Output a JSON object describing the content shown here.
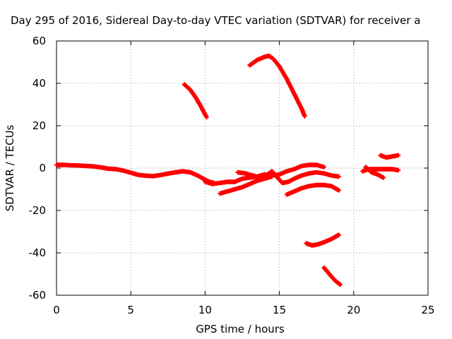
{
  "chart_data": {
    "type": "scatter",
    "title": "Day 295 of 2016, Sidereal Day-to-day VTEC variation (SDTVAR) for receiver a",
    "xlabel": "GPS time / hours",
    "ylabel": "SDTVAR / TECUs",
    "xlim": [
      0,
      25
    ],
    "ylim": [
      -60,
      60
    ],
    "x_ticks": [
      "0",
      "5",
      "10",
      "15",
      "20",
      "25"
    ],
    "y_ticks": [
      "-60",
      "-40",
      "-20",
      "0",
      "20",
      "40",
      "60"
    ],
    "grid": true,
    "legend": "none",
    "marker": "cross",
    "series_color": "#ff0000",
    "series": [
      {
        "x": [
          0.0,
          0.5,
          1.0,
          1.5,
          2.0,
          2.5,
          3.0,
          3.5,
          4.0,
          4.5,
          5.0,
          5.5,
          6.0,
          6.5,
          7.0,
          7.5,
          8.0,
          8.5,
          9.0,
          9.5,
          10.0,
          10.3,
          10.6
        ],
        "y": [
          1.5,
          1.5,
          1.3,
          1.2,
          1.0,
          0.8,
          0.3,
          -0.3,
          -0.5,
          -1.2,
          -2.2,
          -3.2,
          -3.6,
          -3.8,
          -3.3,
          -2.6,
          -2.0,
          -1.5,
          -2.0,
          -3.5,
          -5.5,
          -6.5,
          -7.0
        ]
      },
      {
        "x": [
          8.6,
          9.0,
          9.4,
          9.8,
          10.1
        ],
        "y": [
          39.5,
          37.0,
          33.0,
          28.0,
          24.0
        ]
      },
      {
        "x": [
          13.0,
          13.5,
          14.0,
          14.3,
          14.6,
          15.0,
          15.5,
          16.0,
          16.5,
          16.7
        ],
        "y": [
          48.5,
          51.0,
          52.5,
          53.0,
          51.5,
          48.0,
          42.0,
          35.0,
          28.0,
          24.5
        ]
      },
      {
        "x": [
          10.0,
          10.5,
          11.0,
          11.5,
          12.0,
          12.5,
          13.0,
          13.5,
          14.0,
          14.5,
          15.0,
          15.5,
          16.0,
          16.5,
          17.0,
          17.5,
          18.0
        ],
        "y": [
          -6.5,
          -7.5,
          -7.0,
          -6.5,
          -6.5,
          -5.0,
          -4.5,
          -4.0,
          -3.0,
          -3.5,
          -3.0,
          -1.5,
          -0.5,
          1.0,
          1.5,
          1.5,
          0.5
        ]
      },
      {
        "x": [
          11.0,
          11.5,
          12.0,
          12.5,
          13.0,
          13.5,
          14.0,
          14.5
        ],
        "y": [
          -12.0,
          -11.0,
          -10.0,
          -9.0,
          -7.5,
          -6.0,
          -5.0,
          -4.0
        ]
      },
      {
        "x": [
          12.2,
          12.7,
          13.2,
          13.7,
          14.2,
          14.5,
          14.8,
          15.2,
          15.6,
          16.0,
          16.5,
          17.0,
          17.5,
          18.0,
          18.5,
          19.0
        ],
        "y": [
          -2.0,
          -2.5,
          -3.5,
          -4.5,
          -3.0,
          -1.5,
          -4.0,
          -7.0,
          -6.5,
          -5.0,
          -3.5,
          -2.5,
          -2.0,
          -2.5,
          -3.5,
          -4.0
        ]
      },
      {
        "x": [
          15.5,
          16.0,
          16.5,
          17.0,
          17.5,
          18.0,
          18.5,
          19.0
        ],
        "y": [
          -12.5,
          -11.0,
          -9.5,
          -8.5,
          -8.0,
          -8.0,
          -8.5,
          -10.5
        ]
      },
      {
        "x": [
          16.8,
          17.2,
          17.6,
          18.0,
          18.5,
          19.0
        ],
        "y": [
          -35.5,
          -36.5,
          -36.0,
          -35.0,
          -33.5,
          -31.5
        ]
      },
      {
        "x": [
          18.0,
          18.3,
          18.6,
          18.9,
          19.1
        ],
        "y": [
          -47.0,
          -49.5,
          -52.0,
          -54.0,
          -55.0
        ]
      },
      {
        "x": [
          20.6,
          21.0,
          21.4,
          21.8,
          22.2,
          22.6,
          23.0
        ],
        "y": [
          -1.5,
          -0.5,
          -0.5,
          -0.5,
          -0.5,
          -0.5,
          -1.0
        ]
      },
      {
        "x": [
          20.8,
          21.2,
          21.6,
          22.0
        ],
        "y": [
          0.5,
          -2.0,
          -3.0,
          -4.5
        ]
      },
      {
        "x": [
          21.8,
          22.2,
          22.6,
          23.0
        ],
        "y": [
          6.0,
          5.0,
          5.5,
          6.0
        ]
      }
    ]
  }
}
